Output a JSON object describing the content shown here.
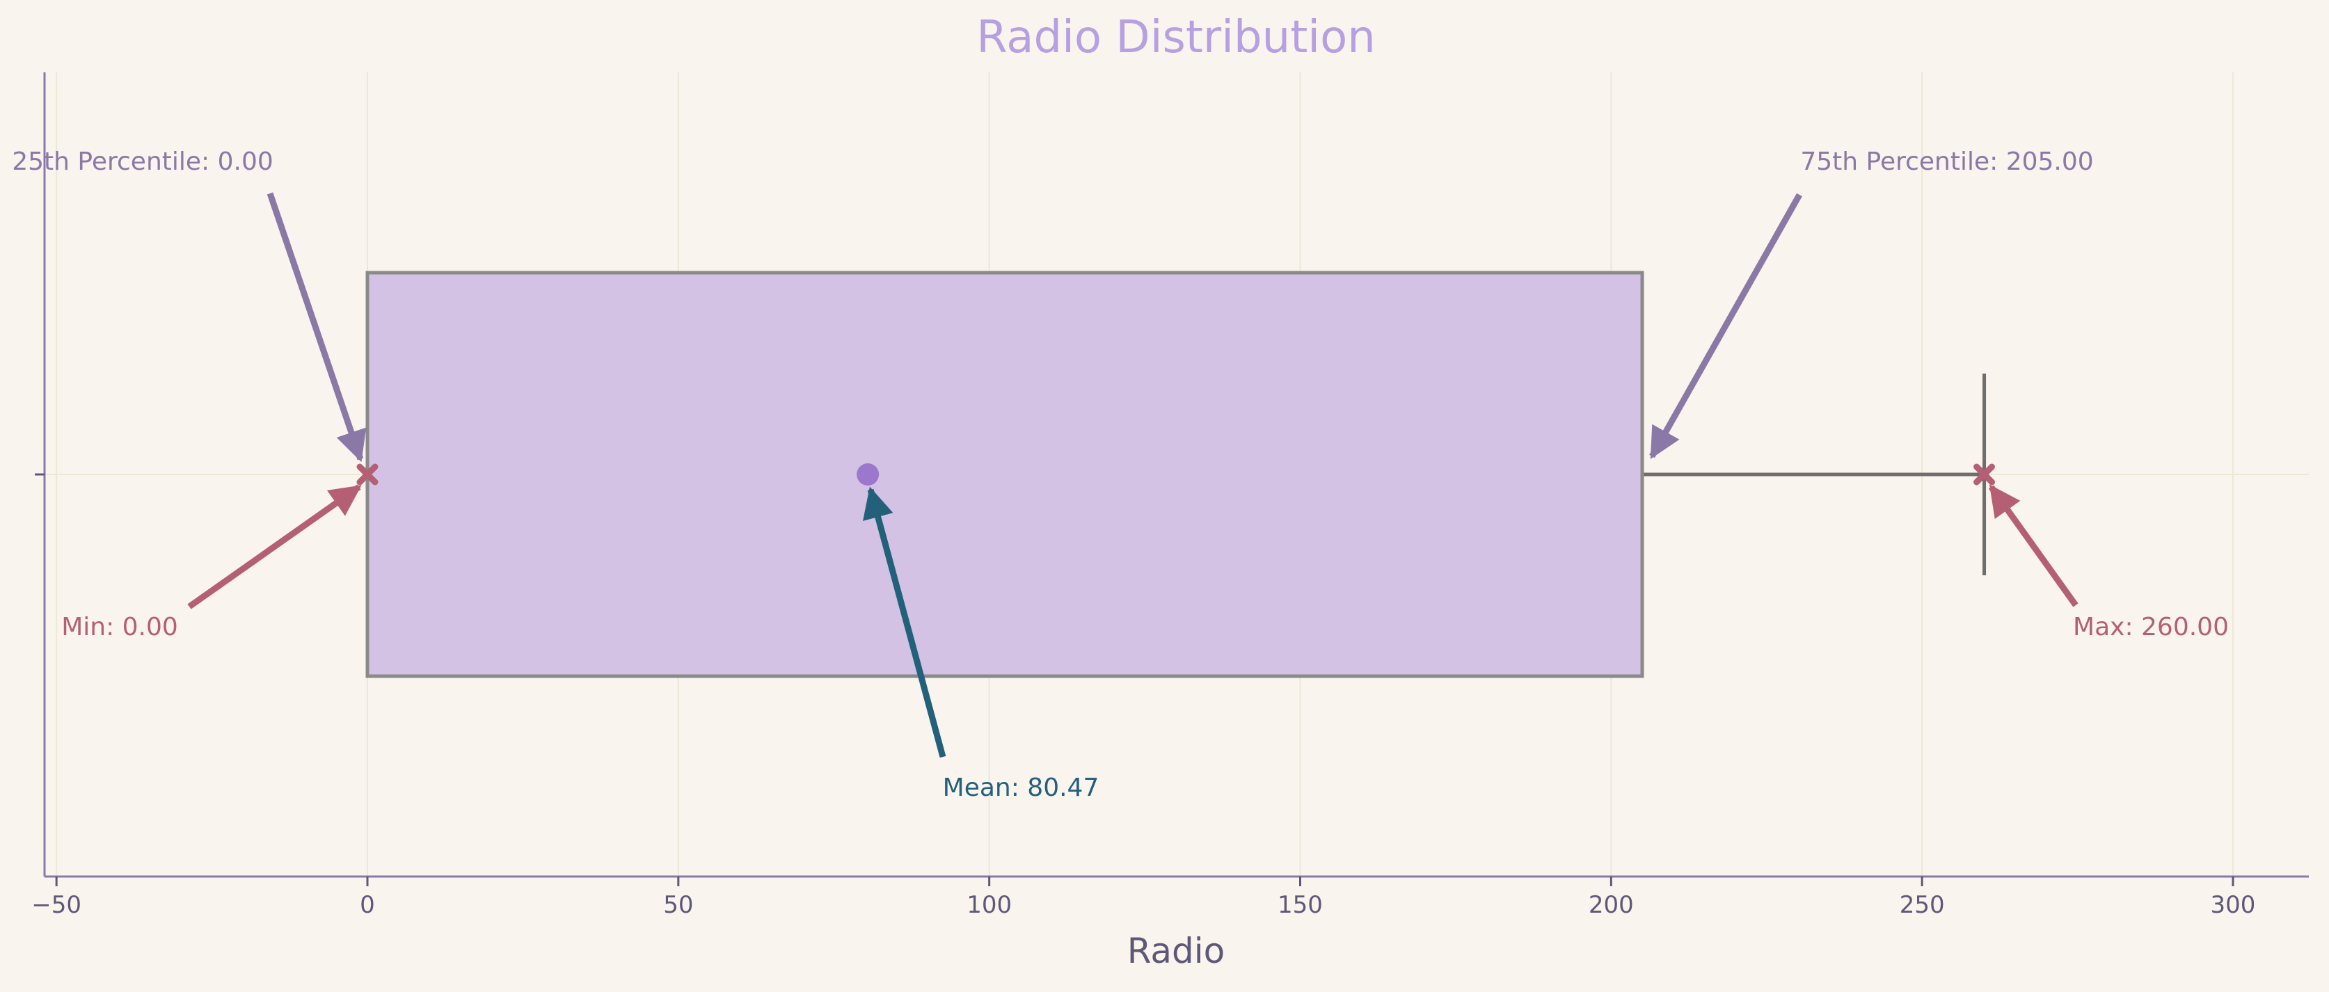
{
  "chart_data": {
    "type": "box",
    "title": "Radio Distribution",
    "xlabel": "Radio",
    "ylabel": "",
    "xlim": [
      -52,
      312
    ],
    "x_ticks": [
      -50,
      0,
      50,
      100,
      150,
      200,
      250,
      300
    ],
    "x_tick_labels": [
      "−50",
      "0",
      "50",
      "100",
      "150",
      "200",
      "250",
      "300"
    ],
    "grid": true,
    "series": [
      {
        "min": 0,
        "q1": 0,
        "median": 0,
        "q3": 205,
        "max": 260,
        "whisker_low": 0,
        "whisker_high": 260,
        "mean": 80.47
      }
    ],
    "annotations": [
      {
        "key": "q1",
        "text": "25th Percentile: 0.00",
        "x": 0,
        "color": "#8a78a6"
      },
      {
        "key": "q3",
        "text": "75th Percentile: 205.00",
        "x": 205,
        "color": "#8a78a6"
      },
      {
        "key": "mean",
        "text": "Mean: 80.47",
        "x": 80.47,
        "color": "#23607a"
      },
      {
        "key": "min",
        "text": "Min: 0.00",
        "x": 0,
        "color": "#b55f74"
      },
      {
        "key": "max",
        "text": "Max: 260.00",
        "x": 260,
        "color": "#b55f74"
      }
    ],
    "colors": {
      "box_fill": "#d3c2e3",
      "box_edge": "#8a8a8a",
      "whisker": "#6e6e6e",
      "mean_marker": "#9c78cc",
      "minmax_marker": "#b55f74",
      "grid": "#ece8d6",
      "axis": "#8a78a6"
    }
  }
}
